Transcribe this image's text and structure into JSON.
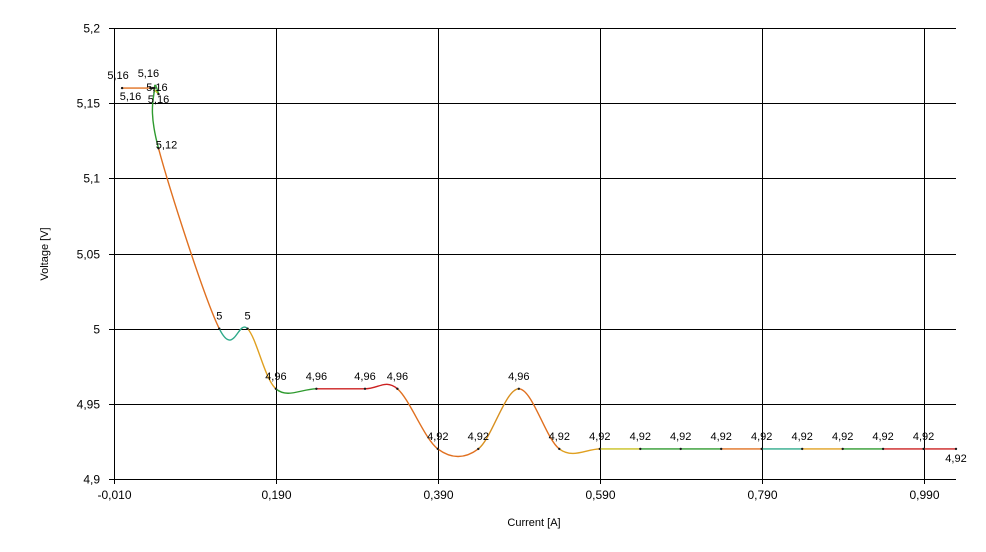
{
  "chart_data": {
    "type": "line",
    "xlabel": "Current [A]",
    "ylabel": "Voltage [V]",
    "xlim": [
      -0.01,
      1.03
    ],
    "ylim": [
      4.9,
      5.2
    ],
    "x_ticks": [
      "-0,010",
      "0,190",
      "0,390",
      "0,590",
      "0,790",
      "0,990"
    ],
    "x_tick_values": [
      -0.01,
      0.19,
      0.39,
      0.59,
      0.79,
      0.99
    ],
    "y_ticks": [
      "4,9",
      "4,95",
      "5",
      "5,05",
      "5,1",
      "5,15",
      "5,2"
    ],
    "y_tick_values": [
      4.9,
      4.95,
      5.0,
      5.05,
      5.1,
      5.15,
      5.2
    ],
    "grid": true,
    "series": [
      {
        "points": [
          {
            "x": 0.0,
            "y": 5.16,
            "label": "5,16"
          },
          {
            "x": 0.035,
            "y": 5.16,
            "label": "5,16"
          },
          {
            "x": 0.038,
            "y": 5.16,
            "label": "5,16"
          },
          {
            "x": 0.045,
            "y": 5.156,
            "label": "5,16"
          },
          {
            "x": 0.04,
            "y": 5.16,
            "label": "5,16"
          },
          {
            "x": 0.045,
            "y": 5.12,
            "label": "5,12"
          },
          {
            "x": 0.12,
            "y": 5.0,
            "label": "5"
          },
          {
            "x": 0.155,
            "y": 5.0,
            "label": "5"
          },
          {
            "x": 0.19,
            "y": 4.96,
            "label": "4,96"
          },
          {
            "x": 0.24,
            "y": 4.96,
            "label": "4,96"
          },
          {
            "x": 0.3,
            "y": 4.96,
            "label": "4,96"
          },
          {
            "x": 0.34,
            "y": 4.96,
            "label": "4,96"
          },
          {
            "x": 0.39,
            "y": 4.92,
            "label": "4,92"
          },
          {
            "x": 0.44,
            "y": 4.92,
            "label": "4,92"
          },
          {
            "x": 0.49,
            "y": 4.96,
            "label": "4,96"
          },
          {
            "x": 0.54,
            "y": 4.92,
            "label": "4,92"
          },
          {
            "x": 0.59,
            "y": 4.92,
            "label": "4,92"
          },
          {
            "x": 0.64,
            "y": 4.92,
            "label": "4,92"
          },
          {
            "x": 0.69,
            "y": 4.92,
            "label": "4,92"
          },
          {
            "x": 0.74,
            "y": 4.92,
            "label": "4,92"
          },
          {
            "x": 0.79,
            "y": 4.92,
            "label": "4,92"
          },
          {
            "x": 0.84,
            "y": 4.92,
            "label": "4,92"
          },
          {
            "x": 0.89,
            "y": 4.92,
            "label": "4,92"
          },
          {
            "x": 0.94,
            "y": 4.92,
            "label": "4,92"
          },
          {
            "x": 0.99,
            "y": 4.92,
            "label": "4,92"
          },
          {
            "x": 1.03,
            "y": 4.92,
            "label": "4,92"
          }
        ]
      }
    ],
    "segment_colors": [
      "#e07020",
      "#e0a020",
      "#c8c020",
      "#2e9a2e",
      "#2e9a2e",
      "#e07020",
      "#2eaa8a",
      "#e0a020",
      "#2e9a2e",
      "#cc2020",
      "#cc2020",
      "#e07020",
      "#e07020",
      "#d89020"
    ]
  }
}
